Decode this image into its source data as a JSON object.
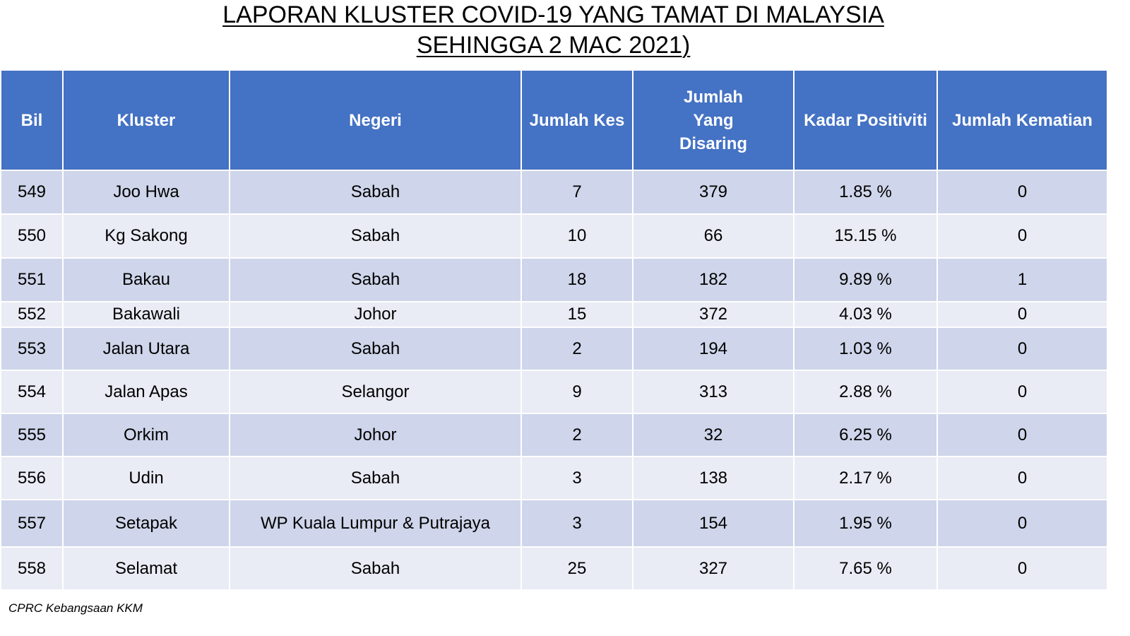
{
  "title": {
    "line1": "LAPORAN KLUSTER COVID-19 YANG TAMAT DI MALAYSIA",
    "line2": "SEHINGGA 2 MAC 2021)"
  },
  "colors": {
    "header_bg": "#4472c4",
    "header_text": "#ffffff",
    "row_dark": "#cfd5ea",
    "row_light": "#e9ebf5"
  },
  "table": {
    "headers": [
      "Bil",
      "Kluster",
      "Negeri",
      "Jumlah Kes",
      "Jumlah Yang Disaring",
      "Kadar Positiviti",
      "Jumlah Kematian"
    ],
    "rows": [
      [
        "549",
        "Joo Hwa",
        "Sabah",
        "7",
        "379",
        "1.85 %",
        "0"
      ],
      [
        "550",
        "Kg Sakong",
        "Sabah",
        "10",
        "66",
        "15.15 %",
        "0"
      ],
      [
        "551",
        "Bakau",
        "Sabah",
        "18",
        "182",
        "9.89 %",
        "1"
      ],
      [
        "552",
        "Bakawali",
        "Johor",
        "15",
        "372",
        "4.03 %",
        "0"
      ],
      [
        "553",
        "Jalan Utara",
        "Sabah",
        "2",
        "194",
        "1.03 %",
        "0"
      ],
      [
        "554",
        "Jalan Apas",
        "Selangor",
        "9",
        "313",
        "2.88 %",
        "0"
      ],
      [
        "555",
        "Orkim",
        "Johor",
        "2",
        "32",
        "6.25 %",
        "0"
      ],
      [
        "556",
        "Udin",
        "Sabah",
        "3",
        "138",
        "2.17 %",
        "0"
      ],
      [
        "557",
        "Setapak",
        "WP Kuala Lumpur & Putrajaya",
        "3",
        "154",
        "1.95 %",
        "0"
      ],
      [
        "558",
        "Selamat",
        "Sabah",
        "25",
        "327",
        "7.65 %",
        "0"
      ]
    ]
  },
  "footer": {
    "source": "CPRC Kebangsaan KKM"
  }
}
